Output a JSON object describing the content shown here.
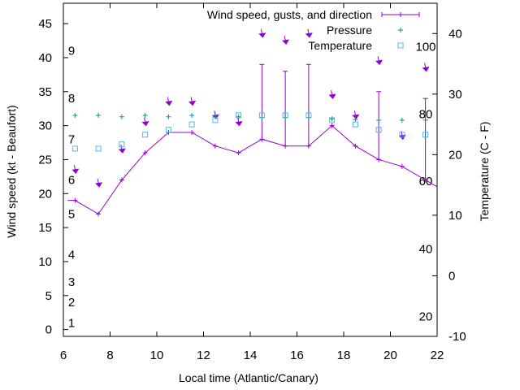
{
  "chart_data": {
    "type": "line",
    "xlabel": "Local time (Atlantic/Canary)",
    "ylabel": "Wind speed (kt - Beaufort)",
    "y2label": "Temperature (C - F)",
    "xlim": [
      6,
      22
    ],
    "ylim": [
      -1,
      48
    ],
    "y2lim": [
      -10,
      45
    ],
    "x_ticks": [
      "6",
      "8",
      "10",
      "12",
      "14",
      "16",
      "18",
      "20",
      "22"
    ],
    "y_ticks": [
      "0",
      "5",
      "10",
      "15",
      "20",
      "25",
      "30",
      "35",
      "40",
      "45"
    ],
    "y2_ticks": [
      "-10",
      "0",
      "10",
      "20",
      "30",
      "40"
    ],
    "beaufort_labels": [
      {
        "text": "1",
        "y": 1
      },
      {
        "text": "2",
        "y": 4
      },
      {
        "text": "3",
        "y": 7
      },
      {
        "text": "4",
        "y": 11
      },
      {
        "text": "5",
        "y": 17
      },
      {
        "text": "6",
        "y": 22
      },
      {
        "text": "7",
        "y": 28
      },
      {
        "text": "8",
        "y": 34
      },
      {
        "text": "9",
        "y": 41
      }
    ],
    "fahrenheit_labels": [
      {
        "text": "20",
        "c": -6.7
      },
      {
        "text": "40",
        "c": 4.4
      },
      {
        "text": "60",
        "c": 15.6
      },
      {
        "text": "80",
        "c": 26.7
      },
      {
        "text": "100",
        "c": 37.8
      }
    ],
    "legend_position": "top-right",
    "colors": {
      "wind": "#9400d3",
      "pressure": "#009e73",
      "temperature": "#56b4e9"
    },
    "series": [
      {
        "name": "Wind speed, gusts, and direction",
        "x": [
          6.5,
          7.5,
          8.5,
          9.5,
          10.5,
          11.5,
          12.5,
          13.5,
          14.5,
          15.5,
          16.5,
          17.5,
          18.5,
          19.5,
          20.5,
          21.5
        ],
        "values": [
          19,
          17,
          22,
          26,
          29,
          29,
          27,
          26,
          28,
          27,
          27,
          30,
          27,
          25,
          24,
          22
        ],
        "gusts": [
          null,
          null,
          null,
          null,
          null,
          null,
          null,
          null,
          39,
          38,
          39,
          null,
          null,
          35,
          null,
          34
        ],
        "direction_arrow_y": [
          23,
          21,
          26,
          30,
          33,
          33,
          31,
          30,
          43,
          42,
          43,
          34,
          31,
          39,
          28,
          38
        ]
      },
      {
        "name": "Pressure",
        "x": [
          6.5,
          7.5,
          8.5,
          9.5,
          10.5,
          11.5,
          12.5,
          13.5,
          14.5,
          15.5,
          16.5,
          17.5,
          18.5,
          19.5,
          20.5,
          21.5
        ],
        "values": [
          31.5,
          31.5,
          31.3,
          31.5,
          31.3,
          31.5,
          31.5,
          31.3,
          31.2,
          31.2,
          31.2,
          31.0,
          30.9,
          30.8,
          30.8,
          30.8
        ]
      },
      {
        "name": "Temperature",
        "x": [
          6.5,
          7.5,
          8.5,
          9.5,
          10.5,
          11.5,
          12.5,
          13.5,
          14.5,
          15.5,
          16.5,
          17.5,
          18.5,
          19.5,
          20.5,
          21.5
        ],
        "values": [
          21,
          21,
          21.7,
          23.3,
          24.1,
          25,
          25.7,
          26.5,
          26.5,
          26.5,
          26.5,
          25.7,
          25,
          24.1,
          23.3,
          23.3
        ]
      }
    ]
  }
}
